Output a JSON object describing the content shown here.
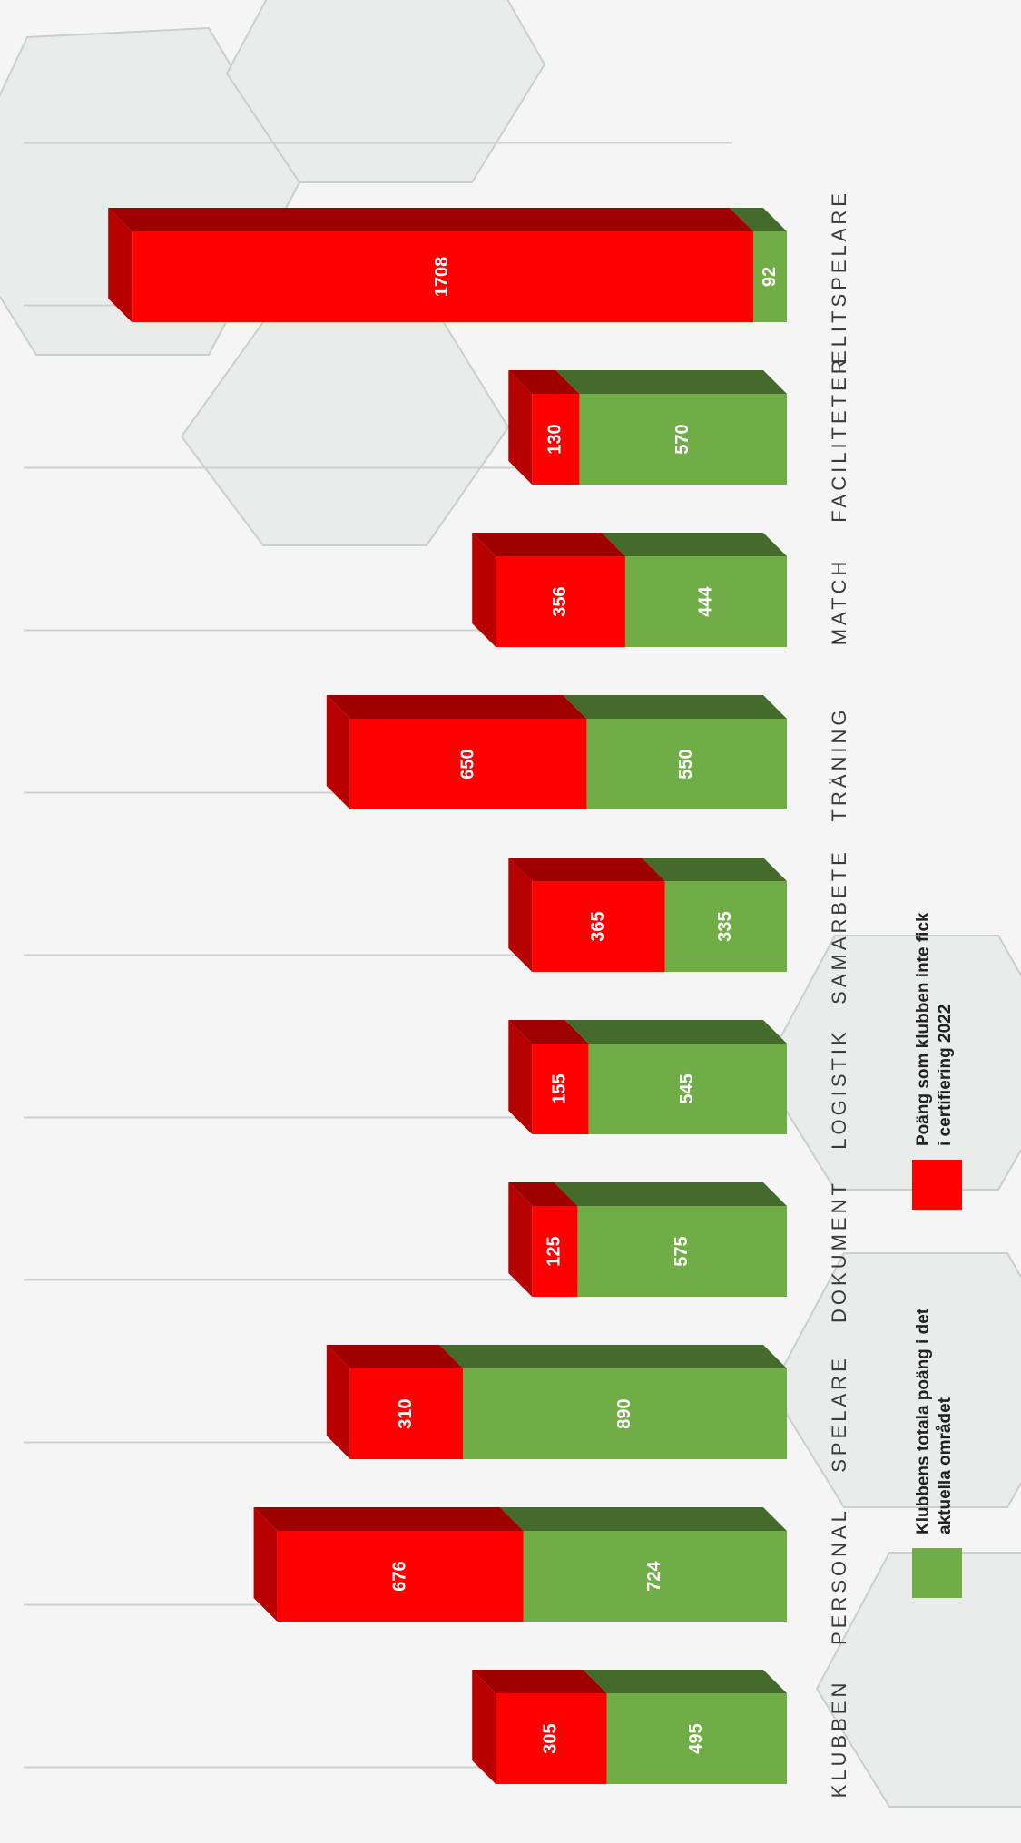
{
  "chart_data": {
    "type": "bar",
    "stacked": true,
    "categories": [
      "KLUBBEN",
      "PERSONAL",
      "SPELARE",
      "DOKUMENT",
      "LOGISTIK",
      "SAMARBETE",
      "TRÄNING",
      "MATCH",
      "FACILITETER",
      "ELITSPELARE"
    ],
    "series": [
      {
        "name": "Klubbens totala poäng i det aktuella området",
        "color": "#70ad47",
        "values": [
          495,
          724,
          890,
          575,
          545,
          335,
          550,
          444,
          570,
          92
        ]
      },
      {
        "name": "Poäng som klubben inte fick i certifiering 2022",
        "color": "#ff0000",
        "values": [
          305,
          676,
          310,
          125,
          155,
          365,
          650,
          356,
          130,
          1708
        ]
      }
    ]
  }
}
